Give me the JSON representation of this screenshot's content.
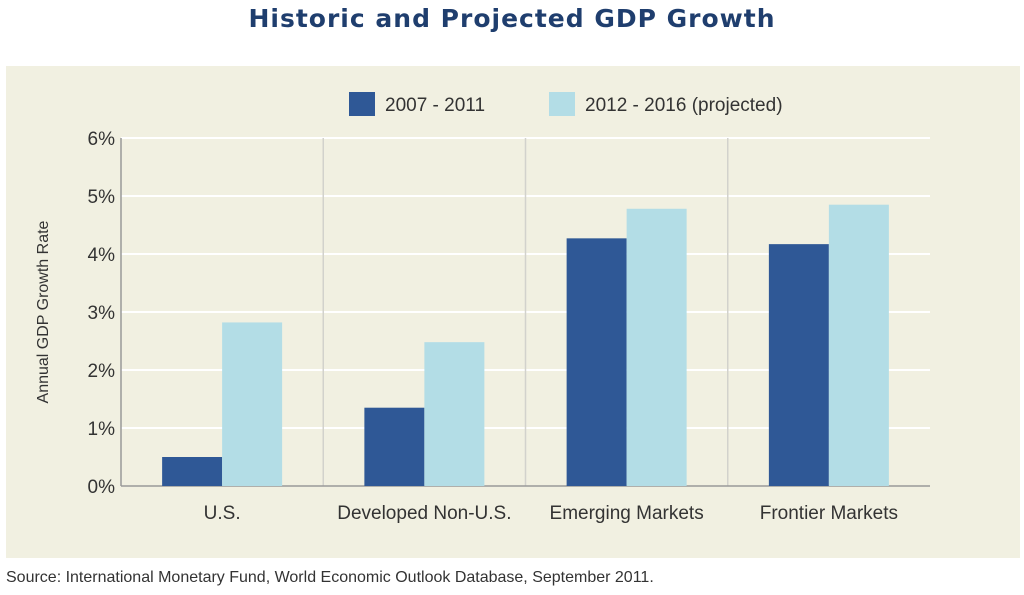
{
  "chart_data": {
    "type": "bar",
    "title": "Historic and Projected GDP Growth",
    "ylabel": "Annual GDP Growth Rate",
    "xlabel": "",
    "ylim": [
      0,
      6
    ],
    "yticks": [
      "0%",
      "1%",
      "2%",
      "3%",
      "4%",
      "5%",
      "6%"
    ],
    "categories": [
      "U.S.",
      "Developed Non-U.S.",
      "Emerging Markets",
      "Frontier Markets"
    ],
    "series": [
      {
        "name": "2007 - 2011",
        "color": "#2f5896",
        "values": [
          0.5,
          1.35,
          4.27,
          4.17
        ]
      },
      {
        "name": "2012 - 2016 (projected)",
        "color": "#b3dde6",
        "values": [
          2.82,
          2.48,
          4.78,
          4.85
        ]
      }
    ],
    "legend_position": "top-center",
    "grid": true
  },
  "source": "Source: International Monetary Fund, World Economic Outlook Database, September 2011."
}
